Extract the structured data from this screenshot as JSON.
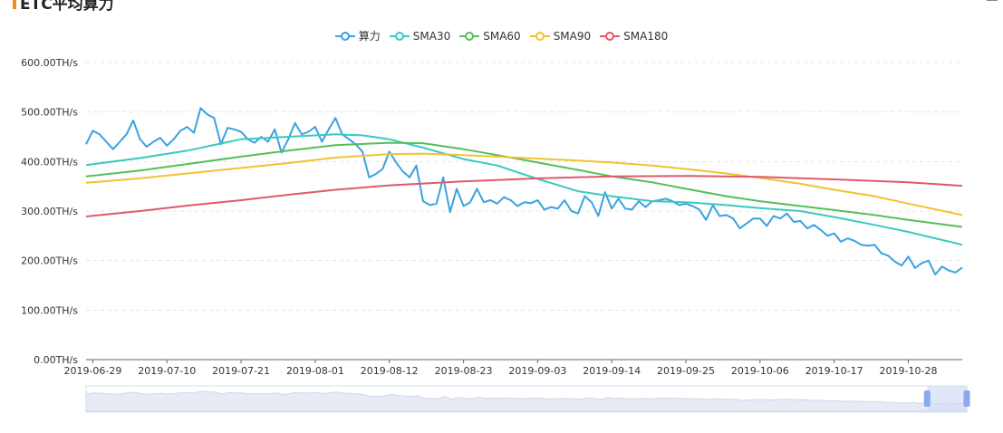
{
  "title": "ETC平均算力",
  "colors": {
    "accent": "#f08c1e",
    "grid": "#e4e4e4",
    "axis": "#666666",
    "slider_fill": "#d3ddf6",
    "slider_handle": "#8ba8eb"
  },
  "icons": {
    "menu": "menu-icon"
  },
  "chart_data": {
    "type": "line",
    "y_ticks": [
      "0.00TH/s",
      "100.00TH/s",
      "200.00TH/s",
      "300.00TH/s",
      "400.00TH/s",
      "500.00TH/s",
      "600.00TH/s"
    ],
    "x_ticks": [
      "2019-06-29",
      "2019-07-10",
      "2019-07-21",
      "2019-08-01",
      "2019-08-12",
      "2019-08-23",
      "2019-09-03",
      "2019-09-14",
      "2019-09-25",
      "2019-10-06",
      "2019-10-17",
      "2019-10-28"
    ],
    "x_range": [
      "2019-06-28",
      "2019-11-05"
    ],
    "ylim": [
      0,
      600
    ],
    "y_unit": "TH/s",
    "grid": "horizontal dashed",
    "legend_position": "top-center",
    "data_zoom": {
      "start": 0.955,
      "end": 1.0
    },
    "series": [
      {
        "name": "算力",
        "color": "#3aa2e0",
        "points": [
          [
            "2019-06-28",
            435
          ],
          [
            "2019-06-29",
            462
          ],
          [
            "2019-06-30",
            455
          ],
          [
            "2019-07-01",
            440
          ],
          [
            "2019-07-02",
            425
          ],
          [
            "2019-07-03",
            440
          ],
          [
            "2019-07-04",
            455
          ],
          [
            "2019-07-05",
            483
          ],
          [
            "2019-07-06",
            445
          ],
          [
            "2019-07-07",
            430
          ],
          [
            "2019-07-08",
            440
          ],
          [
            "2019-07-09",
            448
          ],
          [
            "2019-07-10",
            432
          ],
          [
            "2019-07-11",
            445
          ],
          [
            "2019-07-12",
            462
          ],
          [
            "2019-07-13",
            470
          ],
          [
            "2019-07-14",
            458
          ],
          [
            "2019-07-15",
            508
          ],
          [
            "2019-07-16",
            495
          ],
          [
            "2019-07-17",
            488
          ],
          [
            "2019-07-18",
            435
          ],
          [
            "2019-07-19",
            468
          ],
          [
            "2019-07-20",
            465
          ],
          [
            "2019-07-21",
            460
          ],
          [
            "2019-07-22",
            445
          ],
          [
            "2019-07-23",
            438
          ],
          [
            "2019-07-24",
            450
          ],
          [
            "2019-07-25",
            440
          ],
          [
            "2019-07-26",
            465
          ],
          [
            "2019-07-27",
            418
          ],
          [
            "2019-07-28",
            445
          ],
          [
            "2019-07-29",
            478
          ],
          [
            "2019-07-30",
            455
          ],
          [
            "2019-07-31",
            460
          ],
          [
            "2019-08-01",
            470
          ],
          [
            "2019-08-02",
            440
          ],
          [
            "2019-08-03",
            465
          ],
          [
            "2019-08-04",
            488
          ],
          [
            "2019-08-05",
            455
          ],
          [
            "2019-08-06",
            445
          ],
          [
            "2019-08-07",
            435
          ],
          [
            "2019-08-08",
            420
          ],
          [
            "2019-08-09",
            368
          ],
          [
            "2019-08-10",
            375
          ],
          [
            "2019-08-11",
            385
          ],
          [
            "2019-08-12",
            420
          ],
          [
            "2019-08-13",
            398
          ],
          [
            "2019-08-14",
            380
          ],
          [
            "2019-08-15",
            368
          ],
          [
            "2019-08-16",
            392
          ],
          [
            "2019-08-17",
            320
          ],
          [
            "2019-08-18",
            312
          ],
          [
            "2019-08-19",
            315
          ],
          [
            "2019-08-20",
            368
          ],
          [
            "2019-08-21",
            298
          ],
          [
            "2019-08-22",
            345
          ],
          [
            "2019-08-23",
            310
          ],
          [
            "2019-08-24",
            318
          ],
          [
            "2019-08-25",
            345
          ],
          [
            "2019-08-26",
            318
          ],
          [
            "2019-08-27",
            322
          ],
          [
            "2019-08-28",
            315
          ],
          [
            "2019-08-29",
            328
          ],
          [
            "2019-08-30",
            322
          ],
          [
            "2019-08-31",
            310
          ],
          [
            "2019-09-01",
            318
          ],
          [
            "2019-09-02",
            316
          ],
          [
            "2019-09-03",
            322
          ],
          [
            "2019-09-04",
            303
          ],
          [
            "2019-09-05",
            308
          ],
          [
            "2019-09-06",
            305
          ],
          [
            "2019-09-07",
            322
          ],
          [
            "2019-09-08",
            300
          ],
          [
            "2019-09-09",
            295
          ],
          [
            "2019-09-10",
            330
          ],
          [
            "2019-09-11",
            318
          ],
          [
            "2019-09-12",
            290
          ],
          [
            "2019-09-13",
            338
          ],
          [
            "2019-09-14",
            305
          ],
          [
            "2019-09-15",
            325
          ],
          [
            "2019-09-16",
            305
          ],
          [
            "2019-09-17",
            303
          ],
          [
            "2019-09-18",
            320
          ],
          [
            "2019-09-19",
            308
          ],
          [
            "2019-09-20",
            320
          ],
          [
            "2019-09-21",
            322
          ],
          [
            "2019-09-22",
            325
          ],
          [
            "2019-09-23",
            320
          ],
          [
            "2019-09-24",
            312
          ],
          [
            "2019-09-25",
            315
          ],
          [
            "2019-09-26",
            310
          ],
          [
            "2019-09-27",
            303
          ],
          [
            "2019-09-28",
            282
          ],
          [
            "2019-09-29",
            312
          ],
          [
            "2019-09-30",
            290
          ],
          [
            "2019-10-01",
            292
          ],
          [
            "2019-10-02",
            285
          ],
          [
            "2019-10-03",
            265
          ],
          [
            "2019-10-04",
            275
          ],
          [
            "2019-10-05",
            285
          ],
          [
            "2019-10-06",
            285
          ],
          [
            "2019-10-07",
            270
          ],
          [
            "2019-10-08",
            290
          ],
          [
            "2019-10-09",
            285
          ],
          [
            "2019-10-10",
            295
          ],
          [
            "2019-10-11",
            278
          ],
          [
            "2019-10-12",
            280
          ],
          [
            "2019-10-13",
            265
          ],
          [
            "2019-10-14",
            272
          ],
          [
            "2019-10-15",
            262
          ],
          [
            "2019-10-16",
            250
          ],
          [
            "2019-10-17",
            255
          ],
          [
            "2019-10-18",
            238
          ],
          [
            "2019-10-19",
            245
          ],
          [
            "2019-10-20",
            240
          ],
          [
            "2019-10-21",
            232
          ],
          [
            "2019-10-22",
            230
          ],
          [
            "2019-10-23",
            232
          ],
          [
            "2019-10-24",
            215
          ],
          [
            "2019-10-25",
            210
          ],
          [
            "2019-10-26",
            198
          ],
          [
            "2019-10-27",
            190
          ],
          [
            "2019-10-28",
            208
          ],
          [
            "2019-10-29",
            185
          ],
          [
            "2019-10-30",
            195
          ],
          [
            "2019-10-31",
            200
          ],
          [
            "2019-11-01",
            172
          ],
          [
            "2019-11-02",
            188
          ],
          [
            "2019-11-03",
            180
          ],
          [
            "2019-11-04",
            176
          ],
          [
            "2019-11-05",
            186
          ]
        ]
      },
      {
        "name": "SMA30",
        "color": "#3cc8c0",
        "points": [
          [
            "2019-06-28",
            393
          ],
          [
            "2019-07-06",
            407
          ],
          [
            "2019-07-13",
            422
          ],
          [
            "2019-07-21",
            445
          ],
          [
            "2019-07-28",
            450
          ],
          [
            "2019-08-04",
            455
          ],
          [
            "2019-08-08",
            453
          ],
          [
            "2019-08-12",
            445
          ],
          [
            "2019-08-17",
            428
          ],
          [
            "2019-08-23",
            405
          ],
          [
            "2019-08-28",
            392
          ],
          [
            "2019-09-03",
            365
          ],
          [
            "2019-09-09",
            340
          ],
          [
            "2019-09-14",
            330
          ],
          [
            "2019-09-20",
            320
          ],
          [
            "2019-09-25",
            318
          ],
          [
            "2019-10-01",
            312
          ],
          [
            "2019-10-06",
            306
          ],
          [
            "2019-10-12",
            300
          ],
          [
            "2019-10-17",
            288
          ],
          [
            "2019-10-23",
            272
          ],
          [
            "2019-10-28",
            258
          ],
          [
            "2019-11-01",
            245
          ],
          [
            "2019-11-05",
            232
          ]
        ]
      },
      {
        "name": "SMA60",
        "color": "#55bf5a",
        "points": [
          [
            "2019-06-28",
            370
          ],
          [
            "2019-07-06",
            382
          ],
          [
            "2019-07-13",
            395
          ],
          [
            "2019-07-21",
            410
          ],
          [
            "2019-07-28",
            422
          ],
          [
            "2019-08-04",
            433
          ],
          [
            "2019-08-12",
            438
          ],
          [
            "2019-08-17",
            437
          ],
          [
            "2019-08-23",
            425
          ],
          [
            "2019-08-28",
            413
          ],
          [
            "2019-09-03",
            398
          ],
          [
            "2019-09-09",
            383
          ],
          [
            "2019-09-14",
            370
          ],
          [
            "2019-09-20",
            358
          ],
          [
            "2019-09-25",
            345
          ],
          [
            "2019-10-01",
            330
          ],
          [
            "2019-10-06",
            320
          ],
          [
            "2019-10-12",
            310
          ],
          [
            "2019-10-17",
            302
          ],
          [
            "2019-10-23",
            292
          ],
          [
            "2019-10-28",
            282
          ],
          [
            "2019-11-05",
            268
          ]
        ]
      },
      {
        "name": "SMA90",
        "color": "#f1c232",
        "points": [
          [
            "2019-06-28",
            357
          ],
          [
            "2019-07-06",
            366
          ],
          [
            "2019-07-13",
            376
          ],
          [
            "2019-07-21",
            387
          ],
          [
            "2019-07-28",
            397
          ],
          [
            "2019-08-04",
            408
          ],
          [
            "2019-08-12",
            415
          ],
          [
            "2019-08-17",
            416
          ],
          [
            "2019-08-23",
            413
          ],
          [
            "2019-08-28",
            410
          ],
          [
            "2019-09-03",
            406
          ],
          [
            "2019-09-09",
            402
          ],
          [
            "2019-09-14",
            398
          ],
          [
            "2019-09-20",
            392
          ],
          [
            "2019-09-25",
            385
          ],
          [
            "2019-10-01",
            376
          ],
          [
            "2019-10-06",
            367
          ],
          [
            "2019-10-12",
            355
          ],
          [
            "2019-10-17",
            343
          ],
          [
            "2019-10-23",
            330
          ],
          [
            "2019-10-28",
            315
          ],
          [
            "2019-11-05",
            292
          ]
        ]
      },
      {
        "name": "SMA180",
        "color": "#e0586e",
        "points": [
          [
            "2019-06-28",
            289
          ],
          [
            "2019-07-06",
            300
          ],
          [
            "2019-07-13",
            311
          ],
          [
            "2019-07-21",
            322
          ],
          [
            "2019-07-28",
            333
          ],
          [
            "2019-08-04",
            343
          ],
          [
            "2019-08-12",
            352
          ],
          [
            "2019-08-23",
            360
          ],
          [
            "2019-09-03",
            366
          ],
          [
            "2019-09-14",
            370
          ],
          [
            "2019-09-25",
            371
          ],
          [
            "2019-10-06",
            369
          ],
          [
            "2019-10-17",
            364
          ],
          [
            "2019-10-28",
            358
          ],
          [
            "2019-11-05",
            351
          ]
        ]
      }
    ]
  }
}
